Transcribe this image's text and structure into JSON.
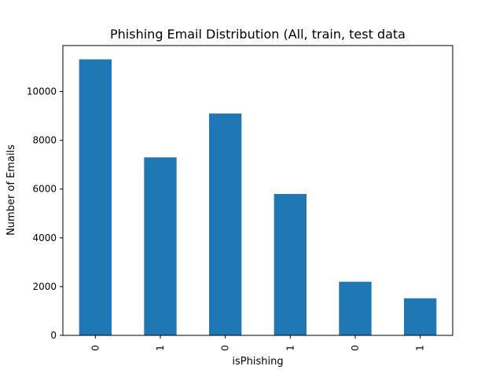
{
  "chart_data": {
    "type": "bar",
    "title": "Phishing Email Distribution (All, train, test data",
    "xlabel": "isPhishing",
    "ylabel": "Number of Emails",
    "categories": [
      "0",
      "1",
      "0",
      "1",
      "0",
      "1"
    ],
    "values": [
      11320,
      7300,
      9100,
      5800,
      2200,
      1520
    ],
    "ylim": [
      0,
      11886
    ],
    "yticks": [
      0,
      2000,
      4000,
      6000,
      8000,
      10000
    ],
    "ytick_labels": [
      "0",
      "2000",
      "4000",
      "6000",
      "8000",
      "10000"
    ],
    "bar_color": "#1f77b4",
    "grid": false,
    "legend": "none"
  }
}
